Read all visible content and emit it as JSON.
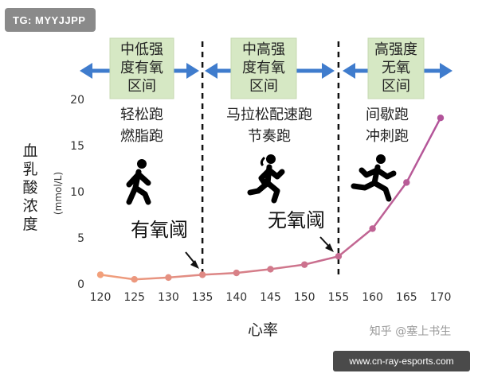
{
  "badge": "TG: MYYJJPP",
  "watermark": "知乎 @塞上书生",
  "site": "www.cn-ray-esports.com",
  "chart_data": {
    "type": "line",
    "x": [
      120,
      125,
      130,
      135,
      140,
      145,
      150,
      155,
      160,
      165,
      170
    ],
    "series": [
      {
        "values": [
          1.0,
          0.5,
          0.7,
          1.0,
          1.2,
          1.6,
          2.1,
          3.0,
          6.0,
          11.0,
          18.0
        ]
      }
    ],
    "xlabel": "心率",
    "ylabel": "血乳酸浓度",
    "ylabel_unit": "(mmol/L)",
    "xlim": [
      120,
      170
    ],
    "ylim": [
      0,
      20
    ],
    "xticks": [
      "120",
      "125",
      "130",
      "135",
      "140",
      "145",
      "150",
      "155",
      "160",
      "165",
      "170"
    ],
    "yticks": [
      "0",
      "5",
      "10",
      "15",
      "20"
    ],
    "grid": false,
    "line_color_start": "#f2a07b",
    "line_color_end": "#b2539a",
    "threshold_lines": [
      {
        "x": 135,
        "label": "有氧阈"
      },
      {
        "x": 155,
        "label": "无氧阈"
      }
    ],
    "zones": [
      {
        "title_lines": [
          "中低强",
          "度有氧",
          "区间"
        ],
        "activity_lines": [
          "轻松跑",
          "燃脂跑"
        ],
        "runner_icon": "walking-person-icon"
      },
      {
        "title_lines": [
          "中高强",
          "度有氧",
          "区间"
        ],
        "activity_lines": [
          "马拉松配速跑",
          "节奏跑"
        ],
        "runner_icon": "running-woman-icon"
      },
      {
        "title_lines": [
          "高强度",
          "无氧",
          "区间"
        ],
        "activity_lines": [
          "间歇跑",
          "冲刺跑"
        ],
        "runner_icon": "sprinting-man-icon"
      }
    ],
    "zone_box_color": "#d6e8c4",
    "arrow_color": "#3f7ccd"
  }
}
